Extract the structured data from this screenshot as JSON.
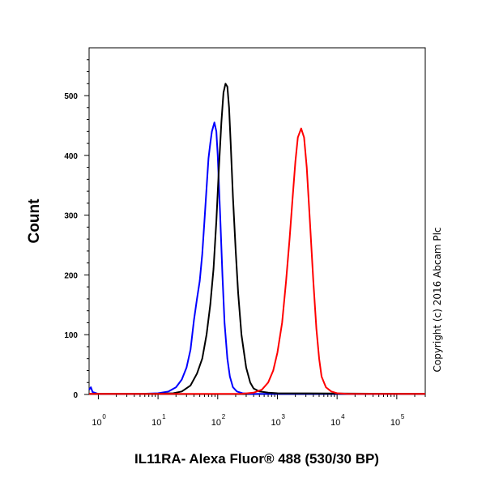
{
  "chart_data": {
    "type": "line",
    "title": "",
    "xlabel": "IL11RA- Alexa Fluor® 488 (530/30 BP)",
    "ylabel": "Count",
    "x_scale": "log",
    "xlim": [
      0.7,
      300000
    ],
    "ylim": [
      0,
      580
    ],
    "y_ticks": [
      0,
      100,
      200,
      300,
      400,
      500
    ],
    "x_ticks": [
      {
        "base": "10",
        "exp": "0",
        "value": 1
      },
      {
        "base": "10",
        "exp": "1",
        "value": 10
      },
      {
        "base": "10",
        "exp": "2",
        "value": 100
      },
      {
        "base": "10",
        "exp": "3",
        "value": 1000
      },
      {
        "base": "10",
        "exp": "4",
        "value": 10000
      },
      {
        "base": "10",
        "exp": "5",
        "value": 100000
      }
    ],
    "grid": false,
    "series": [
      {
        "color": "#0000ff",
        "points": [
          [
            0.7,
            8
          ],
          [
            0.75,
            12
          ],
          [
            0.8,
            4
          ],
          [
            1,
            1
          ],
          [
            5,
            1
          ],
          [
            10,
            2
          ],
          [
            15,
            5
          ],
          [
            20,
            12
          ],
          [
            25,
            25
          ],
          [
            30,
            45
          ],
          [
            35,
            75
          ],
          [
            40,
            125
          ],
          [
            45,
            160
          ],
          [
            50,
            190
          ],
          [
            55,
            235
          ],
          [
            60,
            290
          ],
          [
            65,
            345
          ],
          [
            70,
            395
          ],
          [
            75,
            420
          ],
          [
            80,
            440
          ],
          [
            88,
            455
          ],
          [
            95,
            440
          ],
          [
            100,
            400
          ],
          [
            110,
            300
          ],
          [
            120,
            200
          ],
          [
            130,
            120
          ],
          [
            145,
            60
          ],
          [
            160,
            30
          ],
          [
            180,
            12
          ],
          [
            210,
            5
          ],
          [
            260,
            2
          ],
          [
            350,
            1
          ],
          [
            1000,
            1
          ],
          [
            300000,
            1
          ]
        ]
      },
      {
        "color": "#000000",
        "points": [
          [
            0.7,
            1
          ],
          [
            8,
            1
          ],
          [
            18,
            2
          ],
          [
            25,
            5
          ],
          [
            35,
            15
          ],
          [
            45,
            35
          ],
          [
            55,
            60
          ],
          [
            65,
            100
          ],
          [
            75,
            150
          ],
          [
            85,
            210
          ],
          [
            95,
            290
          ],
          [
            105,
            380
          ],
          [
            115,
            455
          ],
          [
            125,
            505
          ],
          [
            135,
            520
          ],
          [
            145,
            515
          ],
          [
            155,
            480
          ],
          [
            165,
            420
          ],
          [
            180,
            330
          ],
          [
            200,
            240
          ],
          [
            220,
            170
          ],
          [
            250,
            100
          ],
          [
            300,
            45
          ],
          [
            350,
            20
          ],
          [
            400,
            10
          ],
          [
            500,
            5
          ],
          [
            700,
            3
          ],
          [
            1000,
            2
          ],
          [
            300000,
            1
          ]
        ]
      },
      {
        "color": "#ff0000",
        "points": [
          [
            0.7,
            1
          ],
          [
            250,
            1
          ],
          [
            400,
            3
          ],
          [
            550,
            8
          ],
          [
            700,
            20
          ],
          [
            850,
            40
          ],
          [
            1000,
            70
          ],
          [
            1200,
            120
          ],
          [
            1400,
            190
          ],
          [
            1600,
            260
          ],
          [
            1800,
            330
          ],
          [
            2000,
            390
          ],
          [
            2200,
            430
          ],
          [
            2500,
            445
          ],
          [
            2800,
            430
          ],
          [
            3100,
            380
          ],
          [
            3500,
            290
          ],
          [
            4000,
            190
          ],
          [
            4500,
            110
          ],
          [
            5000,
            60
          ],
          [
            5500,
            30
          ],
          [
            6500,
            12
          ],
          [
            8000,
            5
          ],
          [
            10000,
            2
          ],
          [
            15000,
            1
          ],
          [
            300000,
            1
          ]
        ]
      }
    ]
  },
  "copyright": "Copyright (c) 2016 Abcam Plc"
}
